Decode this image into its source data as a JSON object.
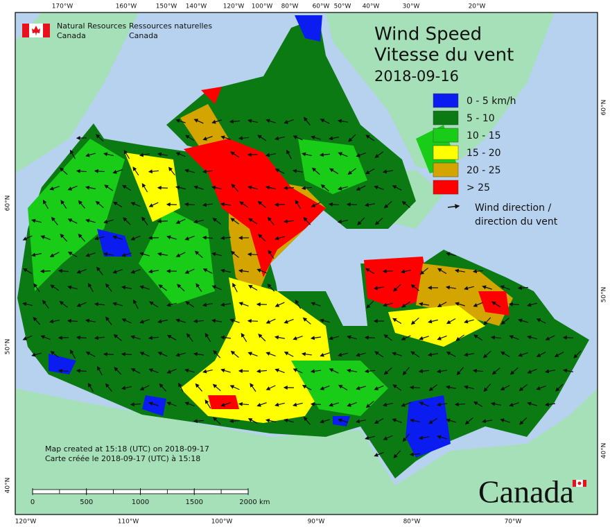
{
  "header": {
    "department_en": [
      "Natural Resources",
      "Canada"
    ],
    "department_fr": [
      "Ressources naturelles",
      "Canada"
    ]
  },
  "title": {
    "en": "Wind Speed",
    "fr": "Vitesse du vent",
    "date": "2018-09-16"
  },
  "legend": {
    "items": [
      {
        "label": "0 - 5 km/h",
        "color": "#0a1cf0"
      },
      {
        "label": "5 - 10",
        "color": "#0b7a13"
      },
      {
        "label": "10 - 15",
        "color": "#18cc18"
      },
      {
        "label": "15 - 20",
        "color": "#ffff00"
      },
      {
        "label": "20 - 25",
        "color": "#d4a500"
      },
      {
        "label": "> 25",
        "color": "#ff0000"
      }
    ],
    "wind_direction": [
      "Wind direction /",
      "direction du vent"
    ]
  },
  "graticule": {
    "top": [
      "170°W",
      "160°W",
      "150°W",
      "140°W",
      "120°W",
      "100°W",
      "80°W",
      "60°W",
      "50°W",
      "40°W",
      "30°W",
      "20°W"
    ],
    "bottom": [
      "120°W",
      "110°W",
      "100°W",
      "90°W",
      "80°W",
      "70°W"
    ],
    "left": [
      "60°N",
      "50°N",
      "40°N"
    ],
    "right": [
      "60°N",
      "50°N",
      "40°N"
    ]
  },
  "credits": [
    "Map created at 15:18 (UTC) on 2018-09-17",
    "Carte créée le 2018-09-17 (UTC) à 15:18"
  ],
  "scale_bar": {
    "ticks": [
      0,
      500,
      1000,
      1500,
      2000
    ],
    "unit": "km"
  },
  "wordmark": "Canada"
}
